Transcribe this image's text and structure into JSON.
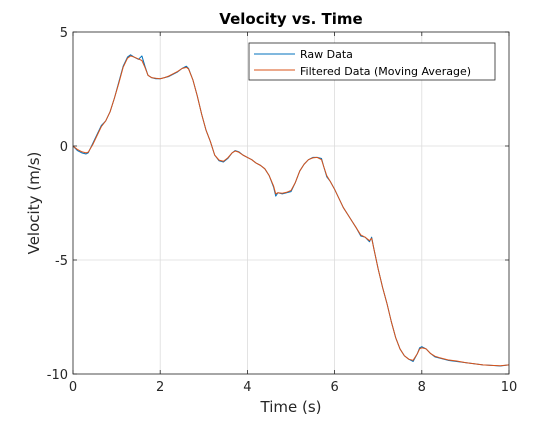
{
  "chart_data": {
    "type": "line",
    "title": "Velocity vs. Time",
    "xlabel": "Time (s)",
    "ylabel": "Velocity (m/s)",
    "xlim": [
      0,
      10
    ],
    "ylim": [
      -10,
      5
    ],
    "xticks": [
      0,
      2,
      4,
      6,
      8,
      10
    ],
    "yticks": [
      5,
      0,
      -5,
      -10
    ],
    "grid": true,
    "legend_position": "top-right",
    "series": [
      {
        "name": "Raw Data",
        "color": "#0072BD",
        "x": [
          0,
          0.1,
          0.2,
          0.3,
          0.35,
          0.45,
          0.55,
          0.65,
          0.75,
          0.85,
          0.95,
          1.05,
          1.15,
          1.25,
          1.32,
          1.4,
          1.5,
          1.58,
          1.65,
          1.72,
          1.8,
          1.9,
          2.0,
          2.1,
          2.2,
          2.3,
          2.4,
          2.5,
          2.6,
          2.65,
          2.75,
          2.85,
          2.95,
          3.05,
          3.15,
          3.25,
          3.35,
          3.45,
          3.55,
          3.65,
          3.72,
          3.8,
          3.9,
          4.0,
          4.1,
          4.2,
          4.3,
          4.4,
          4.5,
          4.6,
          4.65,
          4.7,
          4.8,
          4.9,
          5.0,
          5.1,
          5.2,
          5.3,
          5.4,
          5.5,
          5.6,
          5.7,
          5.75,
          5.82,
          5.9,
          6.0,
          6.1,
          6.2,
          6.3,
          6.4,
          6.5,
          6.6,
          6.7,
          6.8,
          6.85,
          6.9,
          7.0,
          7.1,
          7.2,
          7.3,
          7.4,
          7.5,
          7.6,
          7.7,
          7.8,
          7.9,
          7.95,
          8.0,
          8.1,
          8.2,
          8.3,
          8.4,
          8.6,
          8.8,
          9.0,
          9.2,
          9.4,
          9.6,
          9.8,
          10.0
        ],
        "values": [
          0,
          -0.2,
          -0.3,
          -0.35,
          -0.3,
          0.1,
          0.5,
          0.9,
          1.1,
          1.5,
          2.1,
          2.8,
          3.5,
          3.9,
          4.0,
          3.9,
          3.8,
          3.95,
          3.5,
          3.1,
          3.0,
          2.95,
          2.95,
          3.0,
          3.05,
          3.15,
          3.25,
          3.4,
          3.5,
          3.4,
          2.9,
          2.2,
          1.4,
          0.7,
          0.2,
          -0.4,
          -0.65,
          -0.7,
          -0.55,
          -0.3,
          -0.2,
          -0.25,
          -0.4,
          -0.5,
          -0.6,
          -0.75,
          -0.85,
          -1.0,
          -1.3,
          -1.8,
          -2.2,
          -2.05,
          -2.1,
          -2.05,
          -2.0,
          -1.6,
          -1.1,
          -0.8,
          -0.6,
          -0.5,
          -0.5,
          -0.55,
          -0.9,
          -1.35,
          -1.55,
          -1.9,
          -2.3,
          -2.7,
          -3.0,
          -3.3,
          -3.6,
          -3.95,
          -4.0,
          -4.2,
          -4.0,
          -4.5,
          -5.4,
          -6.2,
          -6.9,
          -7.7,
          -8.4,
          -8.9,
          -9.2,
          -9.35,
          -9.45,
          -9.1,
          -8.85,
          -8.8,
          -8.9,
          -9.1,
          -9.25,
          -9.3,
          -9.4,
          -9.45,
          -9.5,
          -9.55,
          -9.6,
          -9.62,
          -9.65,
          -9.6
        ]
      },
      {
        "name": "Filtered Data (Moving Average)",
        "color": "#D95319",
        "x": [
          0,
          0.1,
          0.2,
          0.3,
          0.35,
          0.45,
          0.55,
          0.65,
          0.75,
          0.85,
          0.95,
          1.05,
          1.15,
          1.25,
          1.32,
          1.4,
          1.5,
          1.58,
          1.65,
          1.72,
          1.8,
          1.9,
          2.0,
          2.1,
          2.2,
          2.3,
          2.4,
          2.5,
          2.6,
          2.65,
          2.75,
          2.85,
          2.95,
          3.05,
          3.15,
          3.25,
          3.35,
          3.45,
          3.55,
          3.65,
          3.72,
          3.8,
          3.9,
          4.0,
          4.1,
          4.2,
          4.3,
          4.4,
          4.5,
          4.6,
          4.65,
          4.7,
          4.8,
          4.9,
          5.0,
          5.1,
          5.2,
          5.3,
          5.4,
          5.5,
          5.6,
          5.7,
          5.75,
          5.82,
          5.9,
          6.0,
          6.1,
          6.2,
          6.3,
          6.4,
          6.5,
          6.6,
          6.7,
          6.8,
          6.85,
          6.9,
          7.0,
          7.1,
          7.2,
          7.3,
          7.4,
          7.5,
          7.6,
          7.7,
          7.8,
          7.9,
          7.95,
          8.0,
          8.1,
          8.2,
          8.3,
          8.4,
          8.6,
          8.8,
          9.0,
          9.2,
          9.4,
          9.6,
          9.8,
          10.0
        ],
        "values": [
          0,
          -0.15,
          -0.25,
          -0.3,
          -0.27,
          0.05,
          0.45,
          0.85,
          1.1,
          1.5,
          2.1,
          2.75,
          3.45,
          3.85,
          3.95,
          3.9,
          3.82,
          3.75,
          3.45,
          3.1,
          3.0,
          2.97,
          2.95,
          3.0,
          3.07,
          3.17,
          3.27,
          3.4,
          3.45,
          3.38,
          2.9,
          2.2,
          1.4,
          0.7,
          0.2,
          -0.4,
          -0.62,
          -0.67,
          -0.52,
          -0.3,
          -0.22,
          -0.27,
          -0.4,
          -0.5,
          -0.6,
          -0.75,
          -0.85,
          -1.0,
          -1.3,
          -1.75,
          -2.1,
          -2.05,
          -2.07,
          -2.03,
          -1.95,
          -1.6,
          -1.1,
          -0.8,
          -0.6,
          -0.52,
          -0.5,
          -0.6,
          -0.9,
          -1.3,
          -1.55,
          -1.9,
          -2.3,
          -2.7,
          -3.0,
          -3.3,
          -3.6,
          -3.9,
          -4.0,
          -4.15,
          -4.05,
          -4.5,
          -5.4,
          -6.2,
          -6.9,
          -7.7,
          -8.4,
          -8.9,
          -9.2,
          -9.35,
          -9.4,
          -9.1,
          -8.9,
          -8.85,
          -8.9,
          -9.1,
          -9.22,
          -9.28,
          -9.38,
          -9.43,
          -9.5,
          -9.55,
          -9.6,
          -9.62,
          -9.64,
          -9.6
        ]
      }
    ]
  }
}
